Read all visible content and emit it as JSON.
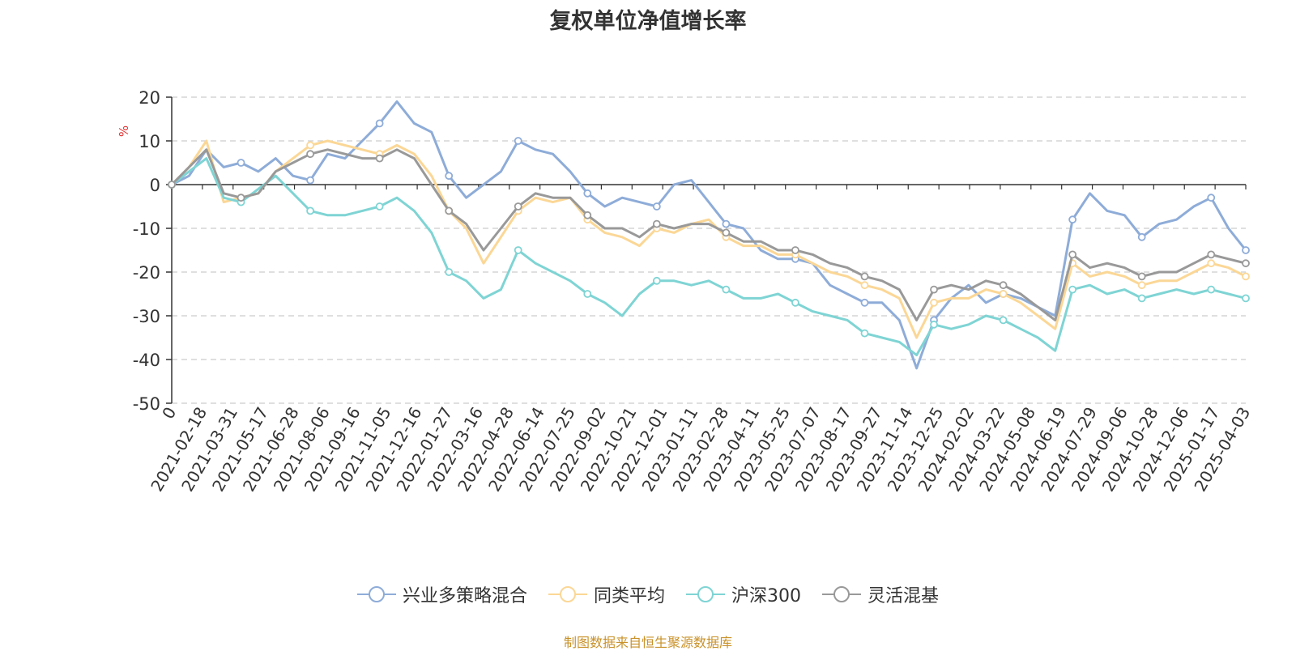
{
  "chart_data": {
    "type": "line",
    "title": "复权单位净值增长率",
    "ylabel": "%",
    "xlabel": "",
    "ylim": [
      -50,
      20
    ],
    "yticks": [
      20,
      10,
      0,
      -10,
      -20,
      -30,
      -40,
      -50
    ],
    "x_ticks": [
      "0",
      "2021-02-18",
      "2021-03-31",
      "2021-05-17",
      "2021-06-28",
      "2021-08-06",
      "2021-09-16",
      "2021-11-05",
      "2021-12-16",
      "2022-01-27",
      "2022-03-16",
      "2022-04-28",
      "2022-06-14",
      "2022-07-25",
      "2022-09-02",
      "2022-10-21",
      "2022-12-01",
      "2023-01-11",
      "2023-02-28",
      "2023-04-11",
      "2023-05-25",
      "2023-07-07",
      "2023-08-17",
      "2023-09-27",
      "2023-11-14",
      "2023-12-25",
      "2024-02-02",
      "2024-03-22",
      "2024-05-08",
      "2024-06-19",
      "2024-07-29",
      "2024-09-06",
      "2024-10-28",
      "2024-12-06",
      "2025-01-17",
      "2025-04-03"
    ],
    "grid": true,
    "legend_position": "bottom",
    "series": [
      {
        "name": "兴业多策略混合",
        "color": "#8eacd8",
        "values": [
          0,
          2,
          8,
          4,
          5,
          3,
          6,
          2,
          1,
          7,
          6,
          10,
          14,
          19,
          14,
          12,
          2,
          -3,
          0,
          3,
          10,
          8,
          7,
          3,
          -2,
          -5,
          -3,
          -4,
          -5,
          0,
          1,
          -4,
          -9,
          -10,
          -15,
          -17,
          -17,
          -18,
          -23,
          -25,
          -27,
          -27,
          -31,
          -42,
          -31,
          -26,
          -23,
          -27,
          -25,
          -26,
          -28,
          -30,
          -8,
          -2,
          -6,
          -7,
          -12,
          -9,
          -8,
          -5,
          -3,
          -10,
          -15
        ]
      },
      {
        "name": "同类平均",
        "color": "#fbd796",
        "values": [
          0,
          4,
          10,
          -4,
          -3,
          -2,
          3,
          6,
          9,
          10,
          9,
          8,
          7,
          9,
          7,
          2,
          -6,
          -10,
          -18,
          -12,
          -6,
          -3,
          -4,
          -3,
          -8,
          -11,
          -12,
          -14,
          -10,
          -11,
          -9,
          -8,
          -12,
          -14,
          -14,
          -16,
          -16,
          -18,
          -20,
          -21,
          -23,
          -24,
          -26,
          -35,
          -27,
          -26,
          -26,
          -24,
          -25,
          -27,
          -30,
          -33,
          -18,
          -21,
          -20,
          -21,
          -23,
          -22,
          -22,
          -20,
          -18,
          -19,
          -21
        ]
      },
      {
        "name": "沪深300",
        "color": "#7fd4d4",
        "values": [
          0,
          3,
          6,
          -3,
          -4,
          -1,
          2,
          -2,
          -6,
          -7,
          -7,
          -6,
          -5,
          -3,
          -6,
          -11,
          -20,
          -22,
          -26,
          -24,
          -15,
          -18,
          -20,
          -22,
          -25,
          -27,
          -30,
          -25,
          -22,
          -22,
          -23,
          -22,
          -24,
          -26,
          -26,
          -25,
          -27,
          -29,
          -30,
          -31,
          -34,
          -35,
          -36,
          -39,
          -32,
          -33,
          -32,
          -30,
          -31,
          -33,
          -35,
          -38,
          -24,
          -23,
          -25,
          -24,
          -26,
          -25,
          -24,
          -25,
          -24,
          -25,
          -26
        ]
      },
      {
        "name": "灵活混基",
        "color": "#999999",
        "values": [
          0,
          4,
          8,
          -2,
          -3,
          -2,
          3,
          5,
          7,
          8,
          7,
          6,
          6,
          8,
          6,
          0,
          -6,
          -9,
          -15,
          -10,
          -5,
          -2,
          -3,
          -3,
          -7,
          -10,
          -10,
          -12,
          -9,
          -10,
          -9,
          -9,
          -11,
          -13,
          -13,
          -15,
          -15,
          -16,
          -18,
          -19,
          -21,
          -22,
          -24,
          -31,
          -24,
          -23,
          -24,
          -22,
          -23,
          -25,
          -28,
          -31,
          -16,
          -19,
          -18,
          -19,
          -21,
          -20,
          -20,
          -18,
          -16,
          -17,
          -18
        ]
      }
    ],
    "source_note": "制图数据来自恒生聚源数据库"
  }
}
